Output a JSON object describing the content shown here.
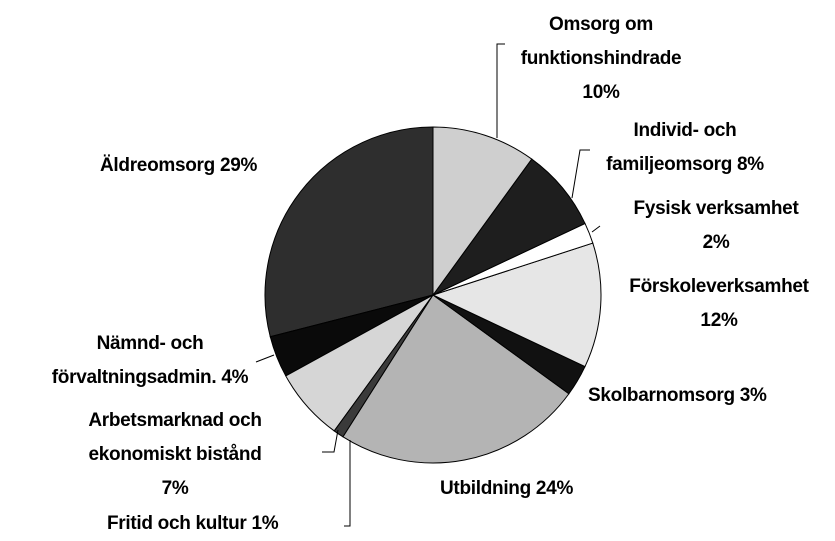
{
  "chart_data": {
    "type": "pie",
    "categories": [
      "Omsorg om funktionshindrade",
      "Individ- och familjeomsorg",
      "Fysisk verksamhet",
      "Förskoleverksamhet",
      "Skolbarnomsorg",
      "Utbildning",
      "Fritid och kultur",
      "Arbetsmarknad och ekonomiskt bistånd",
      "Nämnd- och förvaltningsadmin.",
      "Äldreomsorg"
    ],
    "values": [
      10,
      8,
      2,
      12,
      3,
      24,
      1,
      7,
      4,
      29
    ],
    "value_labels": [
      "10%",
      "8%",
      "2%",
      "12%",
      "3%",
      "24%",
      "1%",
      "7%",
      "4%",
      "29%"
    ],
    "colors": [
      "#cfcfcf",
      "#1e1e1e",
      "#ffffff",
      "#e6e6e6",
      "#111111",
      "#b4b4b4",
      "#3a3a3a",
      "#d6d6d6",
      "#0a0a0a",
      "#2e2e2e"
    ]
  }
}
